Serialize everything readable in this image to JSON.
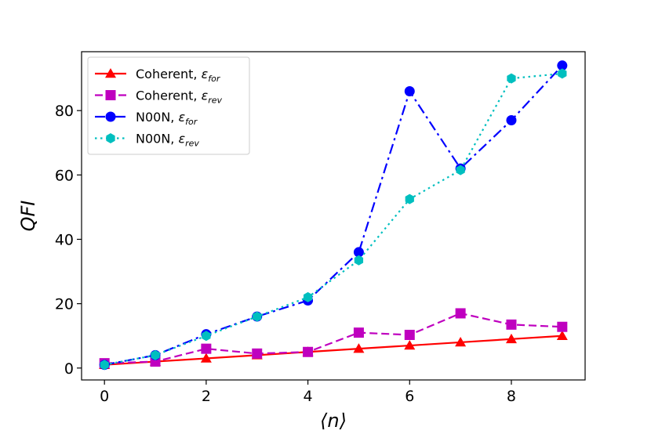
{
  "chart_data": {
    "type": "line",
    "xlabel": "⟨n⟩",
    "ylabel": "QFI",
    "xlim": [
      -0.45,
      9.45
    ],
    "ylim": [
      -3.7,
      98.3
    ],
    "xticks": [
      0,
      2,
      4,
      6,
      8
    ],
    "yticks": [
      0,
      20,
      40,
      60,
      80
    ],
    "grid": false,
    "legend_position": "top-left",
    "x": [
      0,
      1,
      2,
      3,
      4,
      5,
      6,
      7,
      8,
      9
    ],
    "series": [
      {
        "name": "Coherent, ",
        "eps": "ε",
        "sub": "for",
        "color": "#ff0000",
        "linestyle": "solid",
        "marker": "triangle",
        "values": [
          1,
          2,
          3,
          4,
          5,
          6,
          7,
          8,
          9,
          10
        ]
      },
      {
        "name": "Coherent, ",
        "eps": "ε",
        "sub": "rev",
        "color": "#bf00bf",
        "linestyle": "dashed",
        "marker": "square",
        "values": [
          1.5,
          2,
          6,
          4.5,
          5,
          11,
          10.3,
          17,
          13.5,
          12.8
        ]
      },
      {
        "name": "N00N, ",
        "eps": "ε",
        "sub": "for",
        "color": "#0000ff",
        "linestyle": "dashdot",
        "marker": "circle",
        "values": [
          1,
          4,
          10.5,
          16,
          21,
          36,
          86,
          62,
          77,
          94
        ]
      },
      {
        "name": "N00N, ",
        "eps": "ε",
        "sub": "rev",
        "color": "#00bfbf",
        "linestyle": "dotted",
        "marker": "hexagon",
        "values": [
          1,
          4,
          10,
          16,
          22,
          33.5,
          52.5,
          61.5,
          90,
          91.5
        ]
      }
    ]
  }
}
